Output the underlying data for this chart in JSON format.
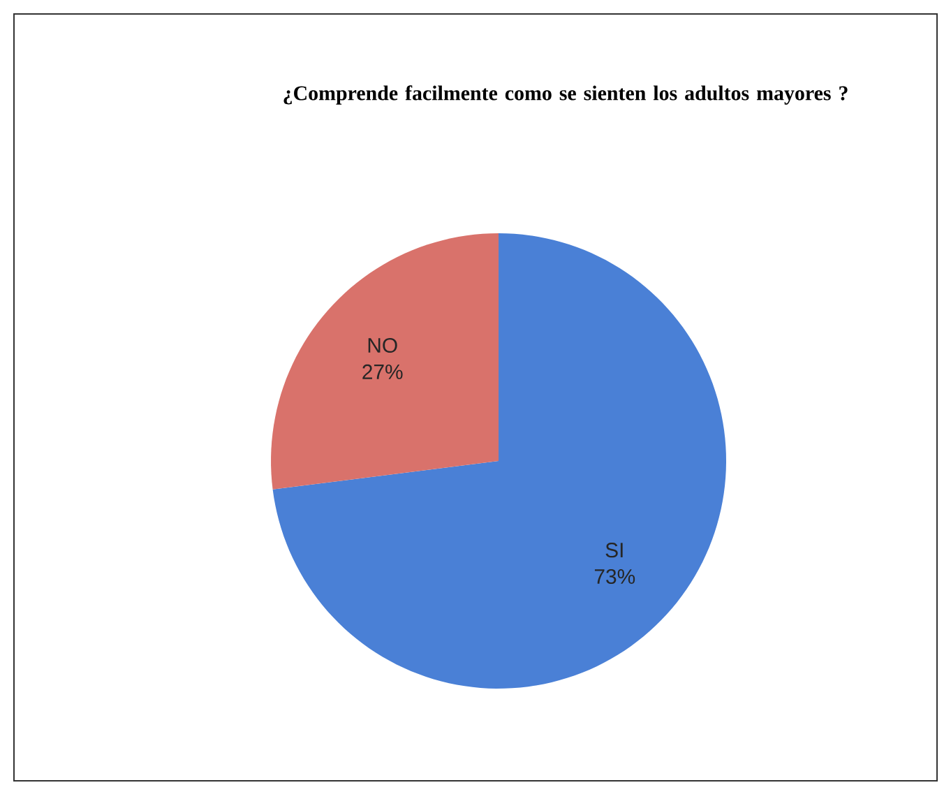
{
  "chart_data": {
    "type": "pie",
    "title": "¿Comprende facilmente como se sienten los adultos mayores ?",
    "categories": [
      "SI",
      "NO"
    ],
    "values": [
      73,
      27
    ],
    "value_labels": [
      "73%",
      "27%"
    ],
    "colors": [
      "#4a80d6",
      "#d9726b"
    ]
  }
}
